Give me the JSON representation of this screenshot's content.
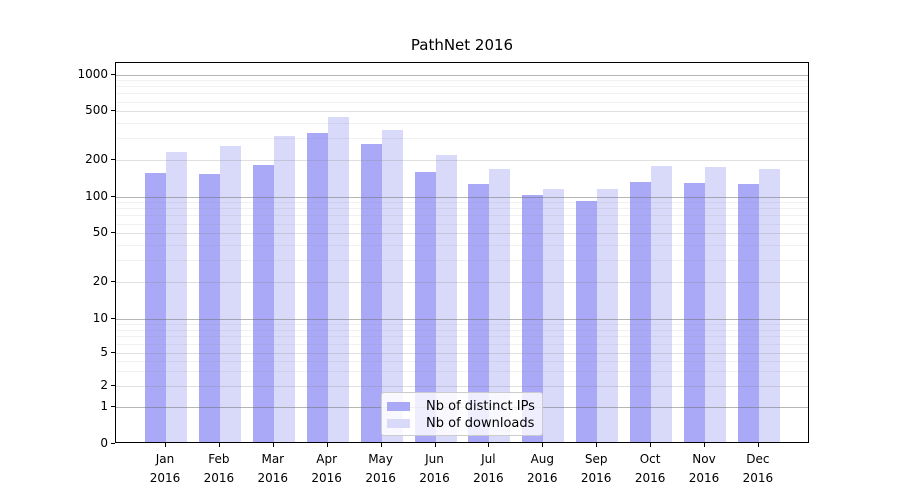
{
  "chart_data": {
    "type": "bar",
    "title": "PathNet 2016",
    "categories": [
      "Jan",
      "Feb",
      "Mar",
      "Apr",
      "May",
      "Jun",
      "Jul",
      "Aug",
      "Sep",
      "Oct",
      "Nov",
      "Dec"
    ],
    "year_label": "2016",
    "series": [
      {
        "name": "Nb of distinct IPs",
        "color": "#a9a9f7",
        "values": [
          150,
          148,
          175,
          320,
          260,
          152,
          121,
          100,
          88,
          127,
          125,
          122
        ]
      },
      {
        "name": "Nb of downloads",
        "color": "#d9d9f9",
        "values": [
          222,
          248,
          300,
          435,
          340,
          212,
          161,
          112,
          112,
          171,
          167,
          161
        ]
      }
    ],
    "xlabel": "",
    "ylabel": "",
    "y_scale": "symlog",
    "y_ticks": [
      0,
      1,
      2,
      5,
      10,
      20,
      50,
      100,
      200,
      500,
      1000
    ],
    "ylim": [
      0,
      1200
    ],
    "grid": "both",
    "legend_position": "lower center"
  }
}
